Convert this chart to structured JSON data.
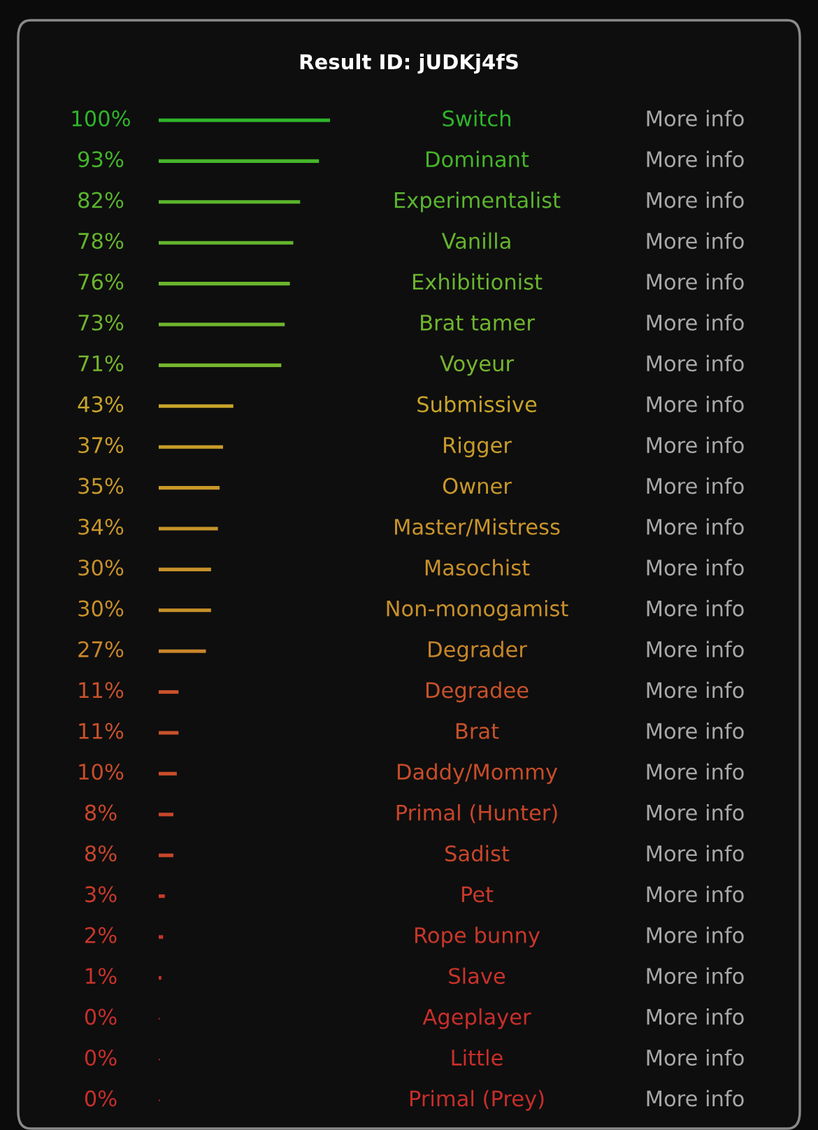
{
  "chart_data": {
    "type": "bar",
    "orientation": "horizontal",
    "title": "Result ID: jUDKj4fS",
    "categories": [
      "Switch",
      "Dominant",
      "Experimentalist",
      "Vanilla",
      "Exhibitionist",
      "Brat tamer",
      "Voyeur",
      "Submissive",
      "Rigger",
      "Owner",
      "Master/Mistress",
      "Masochist",
      "Non-monogamist",
      "Degrader",
      "Degradee",
      "Brat",
      "Daddy/Mommy",
      "Primal (Hunter)",
      "Sadist",
      "Pet",
      "Rope bunny",
      "Slave",
      "Ageplayer",
      "Little",
      "Primal (Prey)"
    ],
    "values": [
      100,
      93,
      82,
      78,
      76,
      73,
      71,
      43,
      37,
      35,
      34,
      30,
      30,
      27,
      11,
      11,
      10,
      8,
      8,
      3,
      2,
      1,
      0,
      0,
      0
    ],
    "value_labels": [
      "100%",
      "93%",
      "82%",
      "78%",
      "76%",
      "73%",
      "71%",
      "43%",
      "37%",
      "35%",
      "34%",
      "30%",
      "30%",
      "27%",
      "11%",
      "11%",
      "10%",
      "8%",
      "8%",
      "3%",
      "2%",
      "1%",
      "0%",
      "0%",
      "0%"
    ],
    "colors": [
      "#2eb52a",
      "#45b52a",
      "#5ab52e",
      "#64b52e",
      "#6ab52e",
      "#70b52e",
      "#76b52e",
      "#c8a52a",
      "#c89c2a",
      "#c8982a",
      "#c8952a",
      "#c8902a",
      "#c8902a",
      "#c8852a",
      "#c8522a",
      "#c8522a",
      "#c84d2a",
      "#c8462a",
      "#c8462a",
      "#c83a2a",
      "#c8372a",
      "#c8332a",
      "#c82e2a",
      "#c82e2a",
      "#c82e2a"
    ],
    "xlim": [
      0,
      100
    ],
    "annotations": [
      "More info",
      "More info",
      "More info",
      "More info",
      "More info",
      "More info",
      "More info",
      "More info",
      "More info",
      "More info",
      "More info",
      "More info",
      "More info",
      "More info",
      "More info",
      "More info",
      "More info",
      "More info",
      "More info",
      "More info",
      "More info",
      "More info",
      "More info",
      "More info",
      "More info"
    ],
    "legend": false
  }
}
